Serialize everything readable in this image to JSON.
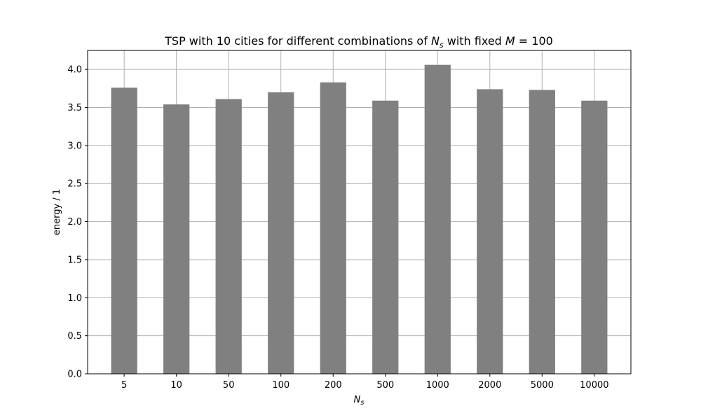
{
  "chart_data": {
    "type": "bar",
    "title": {
      "prefix": "TSP with 10 cities for different combinations of ",
      "n_symbol": "N",
      "n_subscript": "s",
      "middle": " with fixed ",
      "m_symbol": "M",
      "suffix": " = 100"
    },
    "xlabel": {
      "symbol": "N",
      "subscript": "s"
    },
    "ylabel": "energy / 1",
    "categories": [
      "5",
      "10",
      "50",
      "100",
      "200",
      "500",
      "1000",
      "2000",
      "5000",
      "10000"
    ],
    "values": [
      3.76,
      3.54,
      3.61,
      3.7,
      3.83,
      3.59,
      4.06,
      3.74,
      3.73,
      3.59
    ],
    "ylim": [
      0,
      4.25
    ],
    "yticks": [
      0.0,
      0.5,
      1.0,
      1.5,
      2.0,
      2.5,
      3.0,
      3.5,
      4.0
    ],
    "grid": true,
    "bar_color": "#808080",
    "grid_color": "#b0b0b0",
    "axis_color": "#000000"
  }
}
